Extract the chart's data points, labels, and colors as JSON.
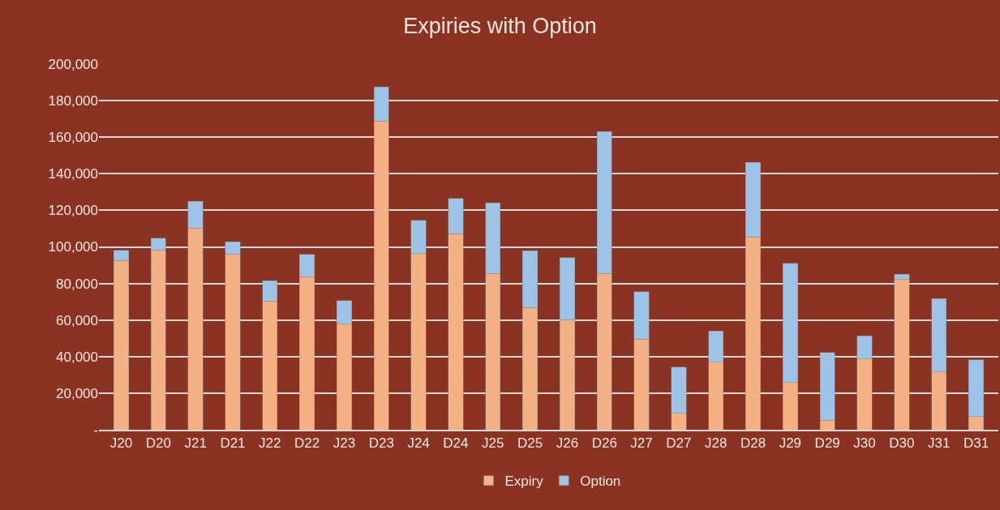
{
  "chart_data": {
    "type": "bar",
    "title": "Expiries with Option",
    "stacked": true,
    "categories": [
      "J20",
      "D20",
      "J21",
      "D21",
      "J22",
      "D22",
      "J23",
      "D23",
      "J24",
      "D24",
      "J25",
      "D25",
      "J26",
      "D26",
      "J27",
      "D27",
      "J28",
      "D28",
      "J29",
      "D29",
      "J30",
      "D30",
      "J31",
      "D31"
    ],
    "series": [
      {
        "name": "Expiry",
        "color": "#f4b183",
        "values": [
          92500,
          98400,
          110400,
          96200,
          70400,
          83700,
          57700,
          168900,
          96300,
          107100,
          85500,
          66900,
          60200,
          85500,
          49600,
          9000,
          37000,
          105500,
          25900,
          5200,
          38800,
          82100,
          31700,
          7200
        ]
      },
      {
        "name": "Option",
        "color": "#9dc3e6",
        "values": [
          5700,
          6300,
          14500,
          6500,
          11100,
          12200,
          13000,
          18500,
          18300,
          19400,
          38500,
          30900,
          34000,
          77500,
          25800,
          25200,
          17100,
          40700,
          65200,
          37100,
          12500,
          3000,
          40000,
          31100
        ]
      }
    ],
    "ylim": [
      0,
      200000
    ],
    "yticks": [
      {
        "value": 0,
        "label": "-"
      },
      {
        "value": 20000,
        "label": "20,000"
      },
      {
        "value": 40000,
        "label": "40,000"
      },
      {
        "value": 60000,
        "label": "60,000"
      },
      {
        "value": 80000,
        "label": "80,000"
      },
      {
        "value": 100000,
        "label": "100,000"
      },
      {
        "value": 120000,
        "label": "120,000"
      },
      {
        "value": 140000,
        "label": "140,000"
      },
      {
        "value": 160000,
        "label": "160,000"
      },
      {
        "value": 180000,
        "label": "180,000"
      },
      {
        "value": 200000,
        "label": "200,000"
      }
    ],
    "grid": "y",
    "legend": "bottom"
  }
}
